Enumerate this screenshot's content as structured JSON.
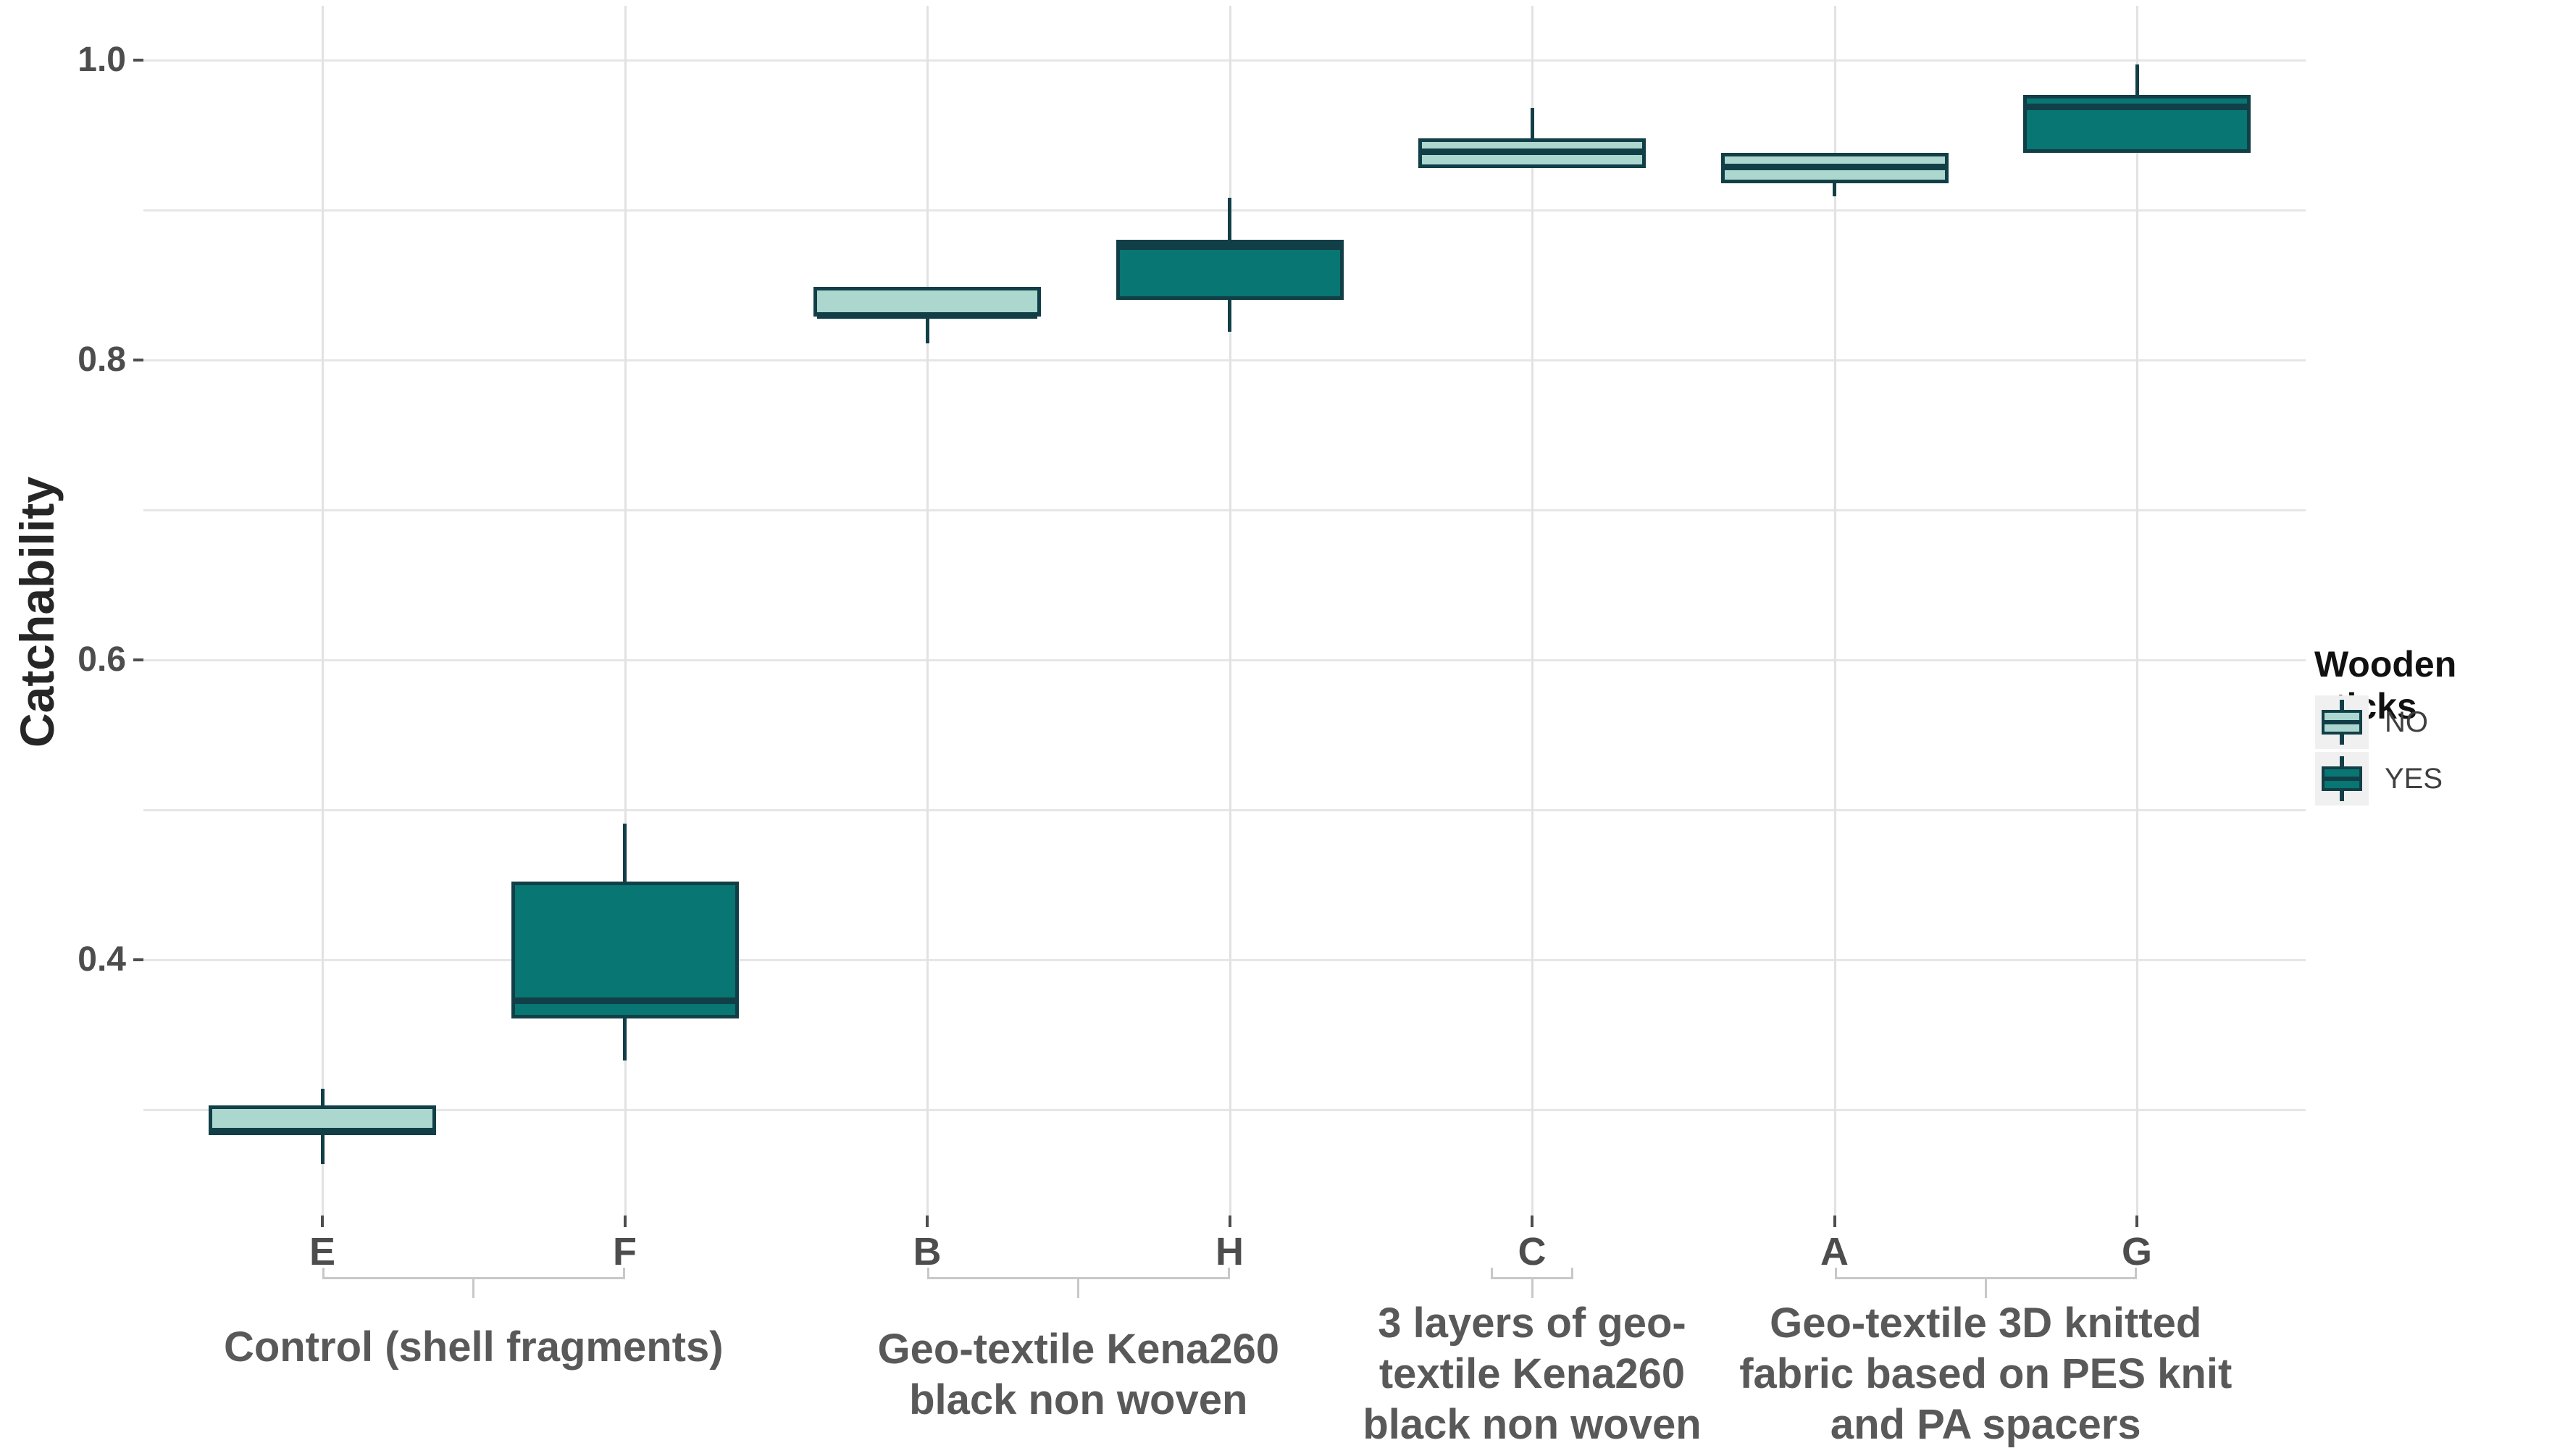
{
  "colors": {
    "no_fill": "#abd7cf",
    "yes_fill": "#087672",
    "stroke": "#123f47",
    "gridline_h": "#e6e6e6",
    "gridline_v": "#e2e2e2",
    "bracket": "#c8c8c8",
    "axis_text": "#4d4d4d",
    "group_text": "#595959"
  },
  "y_axis": {
    "label": "Catchability",
    "tick_labels": [
      "1.0",
      "0.8",
      "0.6",
      "0.4"
    ],
    "tick_values": [
      1.0,
      0.8,
      0.6,
      0.4
    ]
  },
  "legend": {
    "title": "Wooden sticks",
    "items": [
      {
        "label": "NO",
        "fill": "#abd7cf"
      },
      {
        "label": "YES",
        "fill": "#087672"
      }
    ]
  },
  "chart_data": {
    "type": "boxplot",
    "title": "",
    "xlabel": "",
    "ylabel": "Catchability",
    "ylim": [
      0.23,
      1.04
    ],
    "grid": true,
    "grid_values": [
      0.3,
      0.4,
      0.5,
      0.6,
      0.7,
      0.8,
      0.9,
      1.0
    ],
    "y_tick_values": [
      1.0,
      0.8,
      0.6,
      0.4
    ],
    "y_tick_labels": [
      "1.0",
      "0.8",
      "0.6",
      "0.4"
    ],
    "legend_position": "right",
    "legend_title": "Wooden sticks",
    "categories": [
      "E",
      "F",
      "B",
      "H",
      "C",
      "A",
      "G"
    ],
    "series_by_category": [
      {
        "category": "E",
        "wooden_sticks": "NO",
        "min": 0.264,
        "q1": 0.283,
        "median": 0.286,
        "q3": 0.303,
        "max": 0.314
      },
      {
        "category": "F",
        "wooden_sticks": "YES",
        "min": 0.333,
        "q1": 0.361,
        "median": 0.373,
        "q3": 0.452,
        "max": 0.491
      },
      {
        "category": "B",
        "wooden_sticks": "NO",
        "min": 0.811,
        "q1": 0.829,
        "median": 0.83,
        "q3": 0.849,
        "max": 0.849
      },
      {
        "category": "H",
        "wooden_sticks": "YES",
        "min": 0.819,
        "q1": 0.84,
        "median": 0.876,
        "q3": 0.88,
        "max": 0.908
      },
      {
        "category": "C",
        "wooden_sticks": "NO",
        "min": 0.928,
        "q1": 0.928,
        "median": 0.939,
        "q3": 0.948,
        "max": 0.968
      },
      {
        "category": "A",
        "wooden_sticks": "NO",
        "min": 0.909,
        "q1": 0.918,
        "median": 0.929,
        "q3": 0.938,
        "max": 0.938
      },
      {
        "category": "G",
        "wooden_sticks": "YES",
        "min": 0.938,
        "q1": 0.938,
        "median": 0.969,
        "q3": 0.977,
        "max": 0.997
      }
    ],
    "groups": [
      {
        "categories": [
          "E",
          "F"
        ],
        "label": "Control (shell fragments)",
        "lines": [
          "Control (shell fragments)"
        ]
      },
      {
        "categories": [
          "B",
          "H"
        ],
        "label": "Geo-textile Kena260 black non woven",
        "lines": [
          "Geo-textile Kena260",
          "black non woven"
        ]
      },
      {
        "categories": [
          "C"
        ],
        "label": "3 layers of geo-textile Kena260 black non woven",
        "lines": [
          "3 layers of geo-",
          "textile Kena260",
          "black non woven"
        ]
      },
      {
        "categories": [
          "A",
          "G"
        ],
        "label": "Geo-textile 3D knitted fabric based on PES knit and PA spacers",
        "lines": [
          "Geo-textile 3D knitted",
          "fabric based on PES knit",
          "and PA spacers"
        ]
      }
    ]
  }
}
